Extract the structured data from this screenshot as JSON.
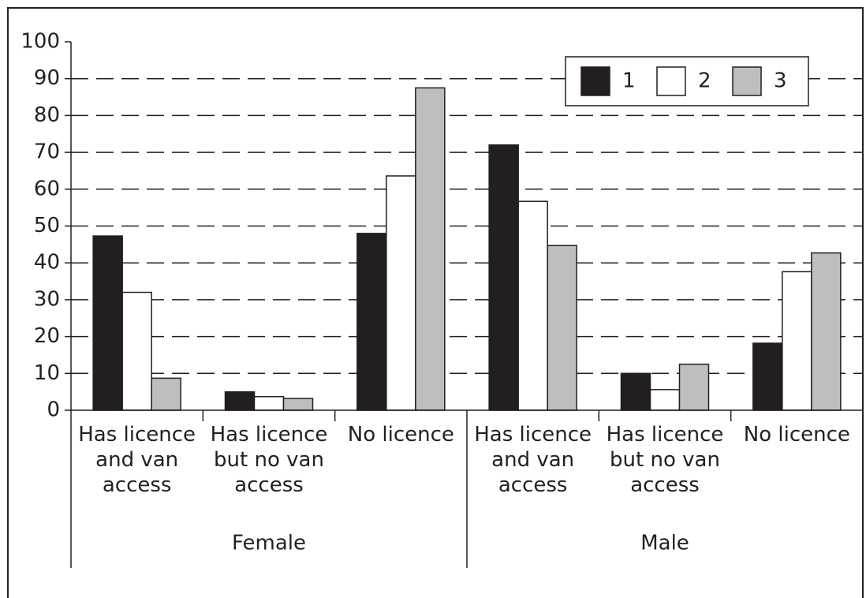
{
  "chart_data": {
    "type": "bar",
    "categories": [
      "Has licence and van access",
      "Has licence but no van access",
      "No licence",
      "Has licence and van access",
      "Has licence but no van access",
      "No licence"
    ],
    "group_labels": [
      "Female",
      "Male"
    ],
    "series": [
      {
        "name": "1",
        "color": "#231f20",
        "values": [
          47.3,
          5,
          48,
          72,
          10,
          18.2
        ]
      },
      {
        "name": "2",
        "color": "#ffffff",
        "values": [
          32,
          3.7,
          63.6,
          56.7,
          5.6,
          37.6
        ]
      },
      {
        "name": "3",
        "color": "#bcbec0",
        "values": [
          8.7,
          3.2,
          87.5,
          44.7,
          12.5,
          42.7
        ]
      }
    ],
    "ylim": [
      0,
      100
    ],
    "yticks": [
      0,
      10,
      20,
      30,
      40,
      50,
      60,
      70,
      80,
      90,
      100
    ],
    "grid": true,
    "legend": "upper right"
  }
}
